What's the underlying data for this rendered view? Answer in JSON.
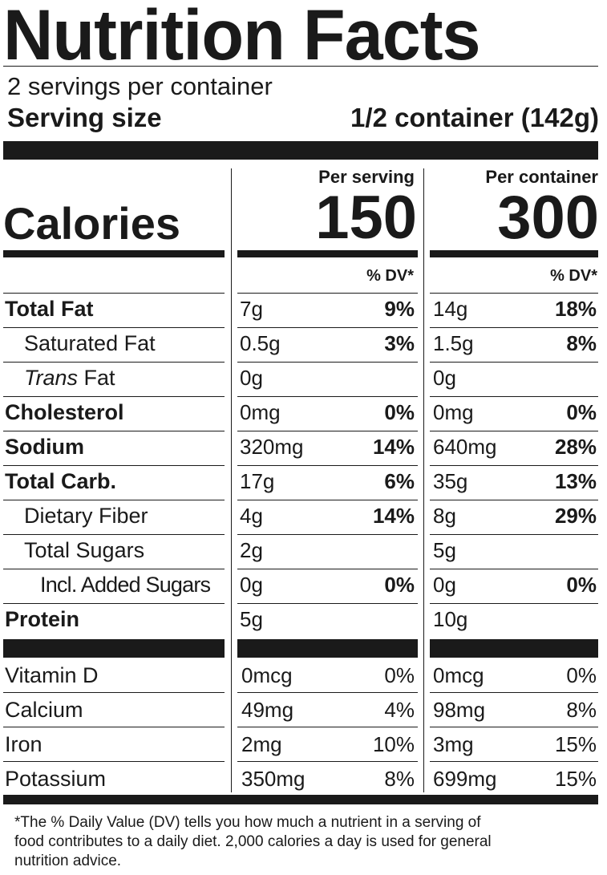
{
  "title": "Nutrition Facts",
  "servings_per_container": "2 servings per container",
  "serving_size_label": "Serving size",
  "serving_size_value": "1/2 container (142g)",
  "calories_label": "Calories",
  "col_per_serving": "Per serving",
  "col_per_container": "Per container",
  "calories_per_serving": "150",
  "calories_per_container": "300",
  "dv_header": "% DV*",
  "nutrients": [
    {
      "label": "Total Fat",
      "style": "bold",
      "s_amt": "7g",
      "s_dv": "9%",
      "c_amt": "14g",
      "c_dv": "18%"
    },
    {
      "label": "Saturated Fat",
      "style": "indent",
      "s_amt": "0.5g",
      "s_dv": "3%",
      "c_amt": "1.5g",
      "c_dv": "8%"
    },
    {
      "label_italic": "Trans",
      "label": " Fat",
      "style": "indent",
      "s_amt": "0g",
      "s_dv": "",
      "c_amt": "0g",
      "c_dv": ""
    },
    {
      "label": "Cholesterol",
      "style": "bold",
      "s_amt": "0mg",
      "s_dv": "0%",
      "c_amt": "0mg",
      "c_dv": "0%"
    },
    {
      "label": "Sodium",
      "style": "bold",
      "s_amt": "320mg",
      "s_dv": "14%",
      "c_amt": "640mg",
      "c_dv": "28%"
    },
    {
      "label": "Total Carb.",
      "style": "bold",
      "s_amt": "17g",
      "s_dv": "6%",
      "c_amt": "35g",
      "c_dv": "13%"
    },
    {
      "label": "Dietary Fiber",
      "style": "indent",
      "s_amt": "4g",
      "s_dv": "14%",
      "c_amt": "8g",
      "c_dv": "29%"
    },
    {
      "label": "Total Sugars",
      "style": "indent",
      "s_amt": "2g",
      "s_dv": "",
      "c_amt": "5g",
      "c_dv": ""
    },
    {
      "label": "Incl. Added Sugars",
      "style": "indent2",
      "s_amt": "0g",
      "s_dv": "0%",
      "c_amt": "0g",
      "c_dv": "0%"
    },
    {
      "label": "Protein",
      "style": "bold",
      "s_amt": "5g",
      "s_dv": "",
      "c_amt": "10g",
      "c_dv": ""
    }
  ],
  "vitamins": [
    {
      "label": "Vitamin D",
      "s_amt": "0mcg",
      "s_dv": "0%",
      "c_amt": "0mcg",
      "c_dv": "0%"
    },
    {
      "label": "Calcium",
      "s_amt": "49mg",
      "s_dv": "4%",
      "c_amt": "98mg",
      "c_dv": "8%"
    },
    {
      "label": "Iron",
      "s_amt": "2mg",
      "s_dv": "10%",
      "c_amt": "3mg",
      "c_dv": "15%"
    },
    {
      "label": "Potassium",
      "s_amt": "350mg",
      "s_dv": "8%",
      "c_amt": "699mg",
      "c_dv": "15%"
    }
  ],
  "footnote_lines": [
    "*The % Daily Value (DV) tells you how much a nutrient in a serving of",
    "food contributes to a daily diet. 2,000 calories a day is used for general",
    "nutrition advice."
  ]
}
